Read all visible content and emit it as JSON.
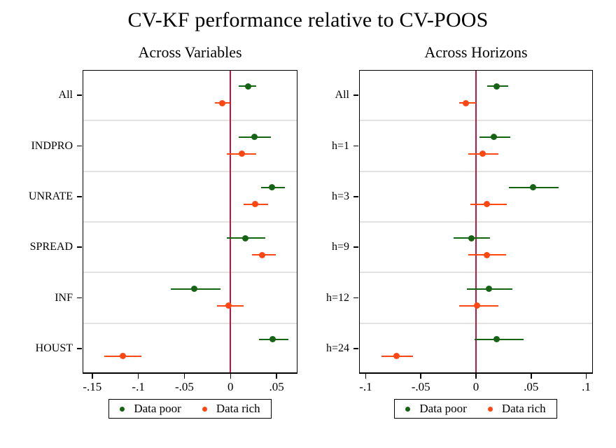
{
  "title": "CV-KF performance relative to CV-POOS",
  "legend": {
    "entries": [
      "Data poor",
      "Data rich"
    ]
  },
  "colors": {
    "data_poor": "#146414",
    "data_rich": "#ff4713",
    "refline": "#bd1740",
    "gridline": "#e2e2e2",
    "frame": "#000000"
  },
  "chart_data": [
    {
      "type": "scatter",
      "subtype": "coefficient-dot-plot-with-ci",
      "title": "Across Variables",
      "orientation": "horizontal",
      "categories": [
        "All",
        "INDPRO",
        "UNRATE",
        "SPREAD",
        "INF",
        "HOUST"
      ],
      "series": [
        {
          "name": "Data poor",
          "color": "#146414",
          "values": [
            0.019,
            0.026,
            0.045,
            0.016,
            -0.039,
            0.046
          ],
          "ci_low": [
            0.009,
            0.009,
            0.033,
            -0.004,
            -0.065,
            0.031
          ],
          "ci_high": [
            0.028,
            0.044,
            0.059,
            0.038,
            -0.011,
            0.063
          ]
        },
        {
          "name": "Data rich",
          "color": "#ff4713",
          "values": [
            -0.009,
            0.012,
            0.027,
            0.034,
            -0.002,
            -0.117
          ],
          "ci_low": [
            -0.017,
            -0.004,
            0.014,
            0.023,
            -0.015,
            -0.137
          ],
          "ci_high": [
            -0.001,
            0.028,
            0.041,
            0.049,
            0.014,
            -0.097
          ]
        }
      ],
      "xlim": [
        -0.1605,
        0.0727
      ],
      "xticks": [
        -0.15,
        -0.1,
        -0.05,
        0,
        0.05
      ],
      "xtick_labels": [
        "-.15",
        "-.1",
        "-.05",
        "0",
        ".05"
      ],
      "refline_x": 0,
      "grid": true,
      "legend_position": "bottom"
    },
    {
      "type": "scatter",
      "subtype": "coefficient-dot-plot-with-ci",
      "title": "Across Horizons",
      "orientation": "horizontal",
      "categories": [
        "All",
        "h=1",
        "h=3",
        "h=9",
        "h=12",
        "h=24"
      ],
      "series": [
        {
          "name": "Data poor",
          "color": "#146414",
          "values": [
            0.019,
            0.016,
            0.052,
            -0.004,
            0.012,
            0.019
          ],
          "ci_low": [
            0.01,
            0.003,
            0.03,
            -0.02,
            -0.008,
            -0.001
          ],
          "ci_high": [
            0.029,
            0.031,
            0.075,
            0.013,
            0.033,
            0.043
          ]
        },
        {
          "name": "Data rich",
          "color": "#ff4713",
          "values": [
            -0.009,
            0.006,
            0.01,
            0.01,
            0.001,
            -0.072
          ],
          "ci_low": [
            -0.015,
            -0.007,
            -0.005,
            -0.007,
            -0.015,
            -0.086
          ],
          "ci_high": [
            0.0,
            0.02,
            0.028,
            0.027,
            0.02,
            -0.057
          ]
        }
      ],
      "xlim": [
        -0.106,
        0.106
      ],
      "xticks": [
        -0.1,
        -0.05,
        0,
        0.05,
        0.1
      ],
      "xtick_labels": [
        "-.1",
        "-.05",
        "0",
        ".05",
        ".1"
      ],
      "refline_x": 0,
      "grid": true,
      "legend_position": "bottom"
    }
  ]
}
